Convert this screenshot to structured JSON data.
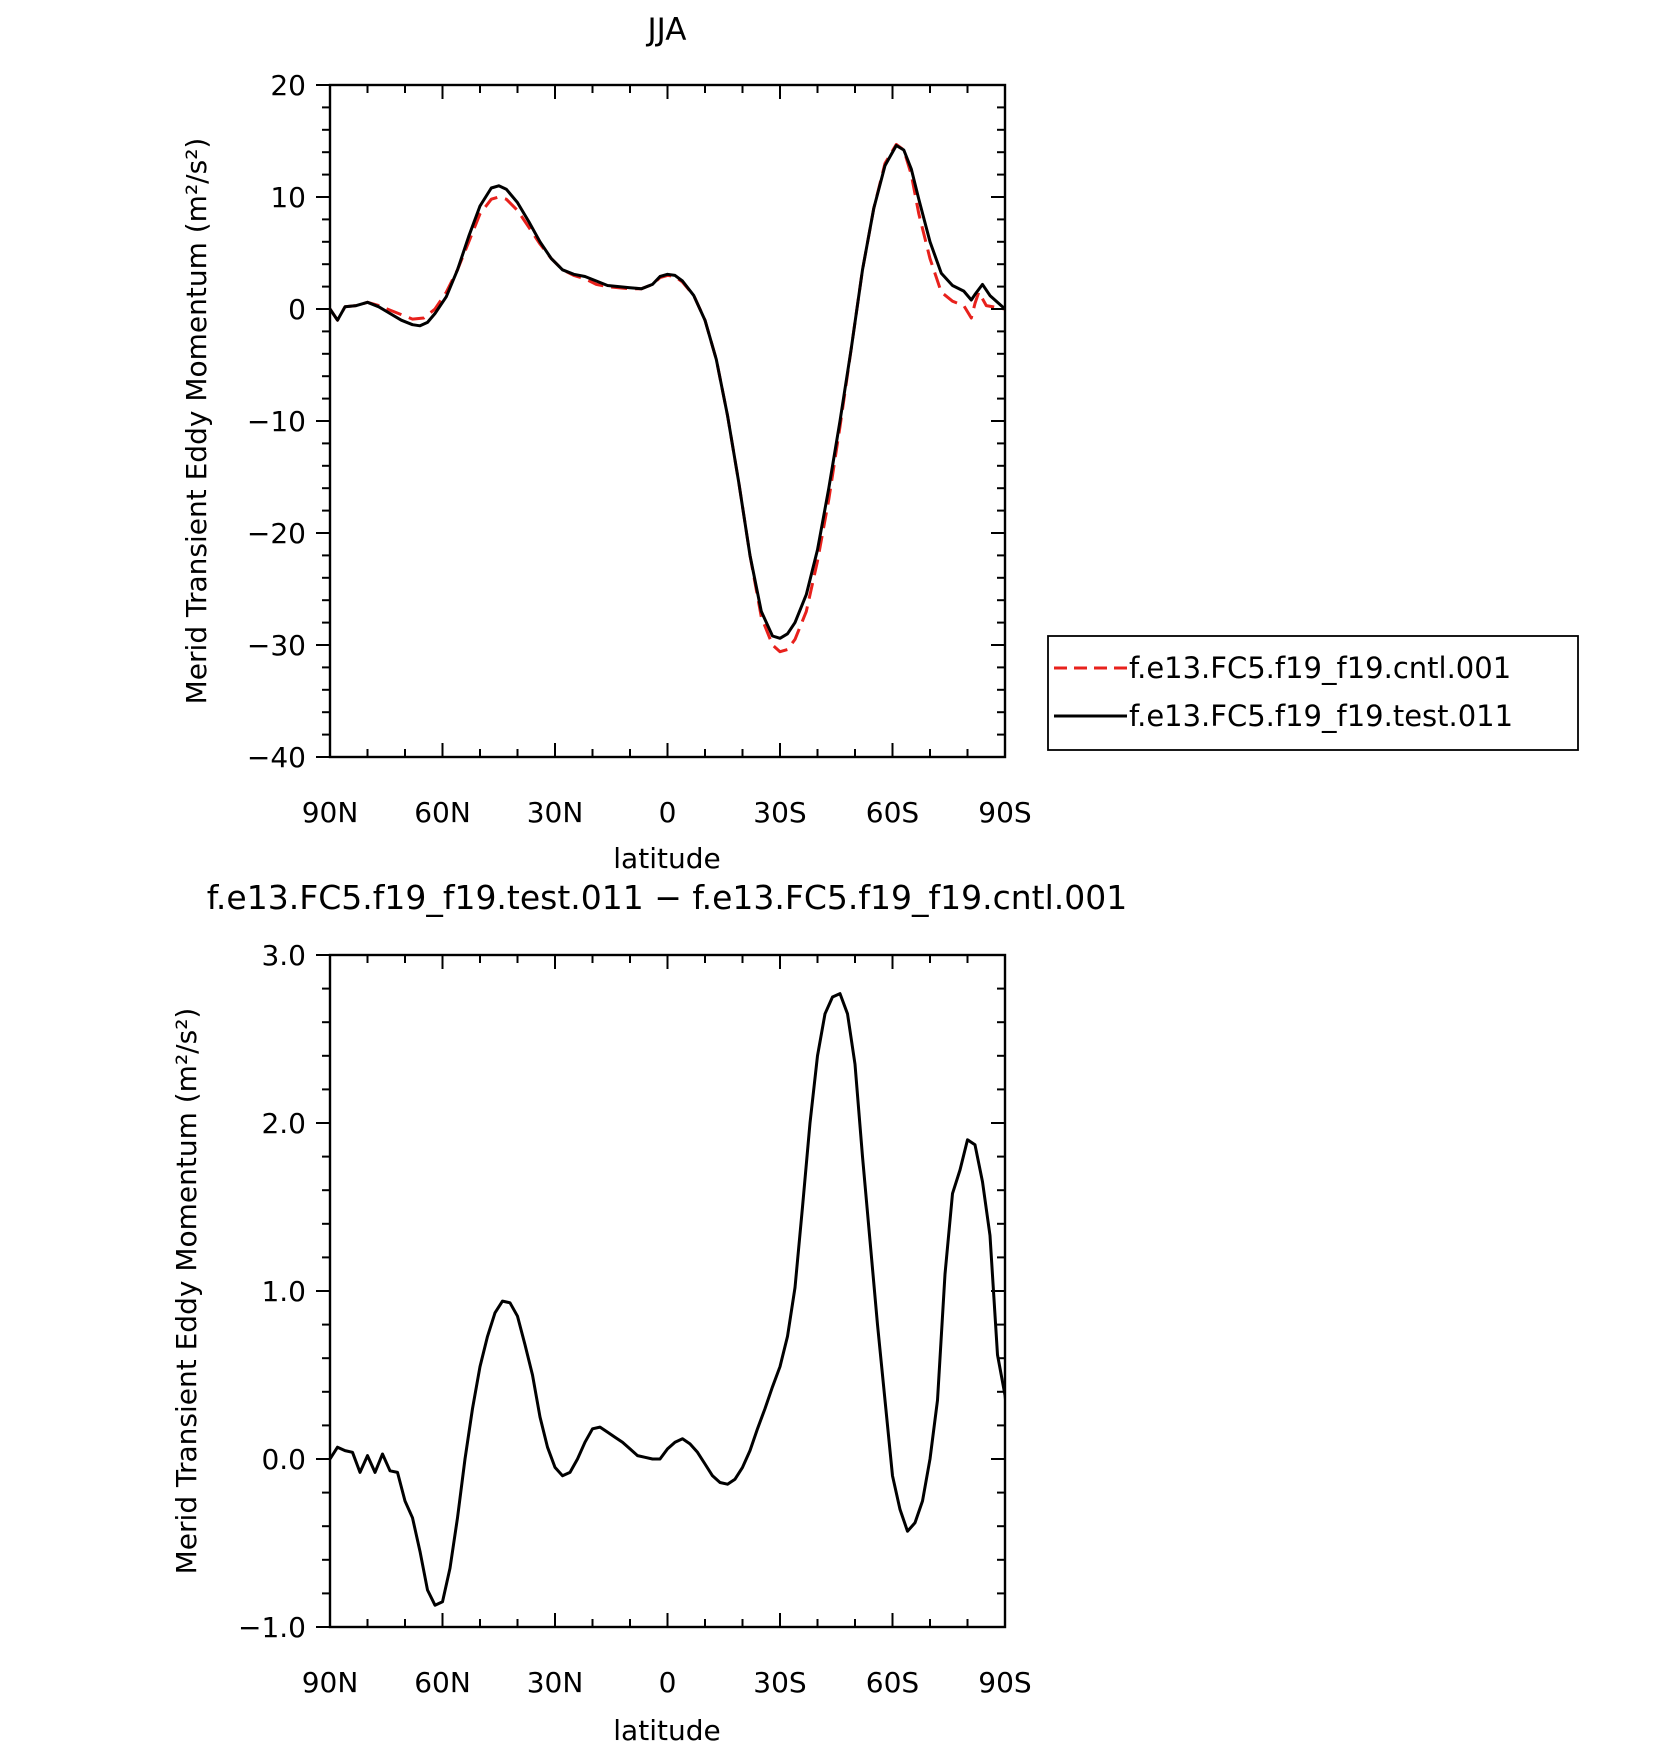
{
  "chart_data": [
    {
      "type": "line",
      "title": "JJA",
      "xlabel": "latitude",
      "ylabel": "Merid Transient Eddy Momentum (m²/s²)",
      "xlim": [
        -90,
        90
      ],
      "ylim": [
        -40,
        20
      ],
      "x_ticks": [
        {
          "value": -90,
          "label": "90N"
        },
        {
          "value": -60,
          "label": "60N"
        },
        {
          "value": -30,
          "label": "30N"
        },
        {
          "value": 0,
          "label": "0"
        },
        {
          "value": 30,
          "label": "30S"
        },
        {
          "value": 60,
          "label": "60S"
        },
        {
          "value": 90,
          "label": "90S"
        }
      ],
      "y_ticks": [
        {
          "value": 20,
          "label": "20"
        },
        {
          "value": 10,
          "label": "10"
        },
        {
          "value": 0,
          "label": "0"
        },
        {
          "value": -10,
          "label": "−10"
        },
        {
          "value": -20,
          "label": "−20"
        },
        {
          "value": -30,
          "label": "−30"
        },
        {
          "value": -40,
          "label": "−40"
        }
      ],
      "legend_position": "right",
      "series": [
        {
          "name": "f.e13.FC5.f19_f19.cntl.001",
          "color": "#e8211c",
          "dash": "dashed",
          "points": [
            [
              -90,
              0
            ],
            [
              -88,
              -1
            ],
            [
              -86,
              0.2
            ],
            [
              -83,
              0.3
            ],
            [
              -80,
              0.6
            ],
            [
              -77,
              0.3
            ],
            [
              -74,
              -0.1
            ],
            [
              -71,
              -0.5
            ],
            [
              -68,
              -0.9
            ],
            [
              -65,
              -0.8
            ],
            [
              -62,
              0
            ],
            [
              -59,
              1.5
            ],
            [
              -56,
              3.5
            ],
            [
              -53,
              6
            ],
            [
              -50,
              8.5
            ],
            [
              -47,
              9.8
            ],
            [
              -45,
              10
            ],
            [
              -43,
              9.8
            ],
            [
              -40,
              8.8
            ],
            [
              -37,
              7.3
            ],
            [
              -34,
              5.8
            ],
            [
              -31,
              4.5
            ],
            [
              -28,
              3.5
            ],
            [
              -25,
              3
            ],
            [
              -22,
              2.7
            ],
            [
              -19,
              2.2
            ],
            [
              -16,
              2
            ],
            [
              -13,
              1.9
            ],
            [
              -10,
              1.8
            ],
            [
              -7,
              1.8
            ],
            [
              -4,
              2.2
            ],
            [
              -2,
              2.8
            ],
            [
              0,
              3
            ],
            [
              2,
              2.9
            ],
            [
              4,
              2.4
            ],
            [
              7,
              1.2
            ],
            [
              10,
              -1
            ],
            [
              13,
              -4.5
            ],
            [
              16,
              -9.5
            ],
            [
              19,
              -15.5
            ],
            [
              22,
              -22
            ],
            [
              25,
              -27.5
            ],
            [
              28,
              -30
            ],
            [
              30,
              -30.6
            ],
            [
              32,
              -30.4
            ],
            [
              34,
              -29.5
            ],
            [
              37,
              -27
            ],
            [
              40,
              -22.5
            ],
            [
              43,
              -17
            ],
            [
              46,
              -10.5
            ],
            [
              49,
              -3.5
            ],
            [
              52,
              3.5
            ],
            [
              55,
              9
            ],
            [
              58,
              13
            ],
            [
              61,
              14.7
            ],
            [
              63,
              14.2
            ],
            [
              65,
              12
            ],
            [
              67,
              8.5
            ],
            [
              70,
              4.5
            ],
            [
              73,
              1.5
            ],
            [
              76,
              0.7
            ],
            [
              79,
              0.3
            ],
            [
              81,
              -0.8
            ],
            [
              82,
              0.5
            ],
            [
              83,
              1.5
            ],
            [
              85,
              0.3
            ],
            [
              90,
              0
            ]
          ]
        },
        {
          "name": "f.e13.FC5.f19_f19.test.011",
          "color": "#000000",
          "dash": "solid",
          "points": [
            [
              -90,
              0
            ],
            [
              -88,
              -1
            ],
            [
              -86,
              0.2
            ],
            [
              -83,
              0.3
            ],
            [
              -80,
              0.6
            ],
            [
              -77,
              0.2
            ],
            [
              -74,
              -0.4
            ],
            [
              -71,
              -1
            ],
            [
              -68,
              -1.4
            ],
            [
              -66,
              -1.5
            ],
            [
              -64,
              -1.2
            ],
            [
              -62,
              -0.4
            ],
            [
              -59,
              1.1
            ],
            [
              -56,
              3.5
            ],
            [
              -53,
              6.5
            ],
            [
              -50,
              9.2
            ],
            [
              -47,
              10.8
            ],
            [
              -45,
              11
            ],
            [
              -43,
              10.7
            ],
            [
              -40,
              9.5
            ],
            [
              -37,
              7.8
            ],
            [
              -34,
              6
            ],
            [
              -31,
              4.5
            ],
            [
              -28,
              3.5
            ],
            [
              -25,
              3.1
            ],
            [
              -22,
              2.9
            ],
            [
              -19,
              2.5
            ],
            [
              -16,
              2.1
            ],
            [
              -13,
              2
            ],
            [
              -10,
              1.9
            ],
            [
              -7,
              1.8
            ],
            [
              -4,
              2.2
            ],
            [
              -2,
              2.9
            ],
            [
              0,
              3.1
            ],
            [
              2,
              3
            ],
            [
              4,
              2.5
            ],
            [
              7,
              1.2
            ],
            [
              10,
              -1
            ],
            [
              13,
              -4.5
            ],
            [
              16,
              -9.5
            ],
            [
              19,
              -15.5
            ],
            [
              22,
              -22
            ],
            [
              25,
              -27
            ],
            [
              28,
              -29.2
            ],
            [
              30,
              -29.4
            ],
            [
              32,
              -29
            ],
            [
              34,
              -28
            ],
            [
              37,
              -25.5
            ],
            [
              40,
              -21.5
            ],
            [
              43,
              -16
            ],
            [
              46,
              -10
            ],
            [
              49,
              -3.5
            ],
            [
              52,
              3.5
            ],
            [
              55,
              9
            ],
            [
              58,
              12.8
            ],
            [
              61,
              14.6
            ],
            [
              63,
              14.2
            ],
            [
              65,
              12.5
            ],
            [
              67,
              9.8
            ],
            [
              70,
              6
            ],
            [
              73,
              3.2
            ],
            [
              76,
              2.1
            ],
            [
              79,
              1.6
            ],
            [
              81,
              0.8
            ],
            [
              82,
              1.3
            ],
            [
              84,
              2.2
            ],
            [
              86,
              1.2
            ],
            [
              90,
              0
            ]
          ]
        }
      ]
    },
    {
      "type": "line",
      "title": "f.e13.FC5.f19_f19.test.011 − f.e13.FC5.f19_f19.cntl.001",
      "xlabel": "latitude",
      "ylabel": "Merid Transient Eddy Momentum (m²/s²)",
      "xlim": [
        -90,
        90
      ],
      "ylim": [
        -1.0,
        3.0
      ],
      "x_ticks": [
        {
          "value": -90,
          "label": "90N"
        },
        {
          "value": -60,
          "label": "60N"
        },
        {
          "value": -30,
          "label": "30N"
        },
        {
          "value": 0,
          "label": "0"
        },
        {
          "value": 30,
          "label": "30S"
        },
        {
          "value": 60,
          "label": "60S"
        },
        {
          "value": 90,
          "label": "90S"
        }
      ],
      "y_ticks": [
        {
          "value": 3.0,
          "label": "3.0"
        },
        {
          "value": 2.0,
          "label": "2.0"
        },
        {
          "value": 1.0,
          "label": "1.0"
        },
        {
          "value": 0.0,
          "label": "0.0"
        },
        {
          "value": -1.0,
          "label": "−1.0"
        }
      ],
      "series": [
        {
          "color": "#000000",
          "dash": "solid",
          "points": [
            [
              -90,
              0
            ],
            [
              -88,
              0.07
            ],
            [
              -86,
              0.05
            ],
            [
              -84,
              0.04
            ],
            [
              -82,
              -0.08
            ],
            [
              -80,
              0.02
            ],
            [
              -78,
              -0.08
            ],
            [
              -76,
              0.03
            ],
            [
              -74,
              -0.07
            ],
            [
              -72,
              -0.08
            ],
            [
              -70,
              -0.25
            ],
            [
              -68,
              -0.35
            ],
            [
              -66,
              -0.55
            ],
            [
              -64,
              -0.78
            ],
            [
              -62,
              -0.87
            ],
            [
              -60,
              -0.85
            ],
            [
              -58,
              -0.65
            ],
            [
              -56,
              -0.35
            ],
            [
              -54,
              0
            ],
            [
              -52,
              0.3
            ],
            [
              -50,
              0.55
            ],
            [
              -48,
              0.73
            ],
            [
              -46,
              0.87
            ],
            [
              -44,
              0.94
            ],
            [
              -42,
              0.93
            ],
            [
              -40,
              0.85
            ],
            [
              -38,
              0.68
            ],
            [
              -36,
              0.5
            ],
            [
              -34,
              0.25
            ],
            [
              -32,
              0.07
            ],
            [
              -30,
              -0.05
            ],
            [
              -28,
              -0.1
            ],
            [
              -26,
              -0.08
            ],
            [
              -24,
              0
            ],
            [
              -22,
              0.1
            ],
            [
              -20,
              0.18
            ],
            [
              -18,
              0.19
            ],
            [
              -16,
              0.16
            ],
            [
              -14,
              0.13
            ],
            [
              -12,
              0.1
            ],
            [
              -10,
              0.06
            ],
            [
              -8,
              0.02
            ],
            [
              -6,
              0.01
            ],
            [
              -4,
              0
            ],
            [
              -2,
              0
            ],
            [
              0,
              0.06
            ],
            [
              2,
              0.1
            ],
            [
              4,
              0.12
            ],
            [
              6,
              0.09
            ],
            [
              8,
              0.04
            ],
            [
              10,
              -0.03
            ],
            [
              12,
              -0.1
            ],
            [
              14,
              -0.14
            ],
            [
              16,
              -0.15
            ],
            [
              18,
              -0.12
            ],
            [
              20,
              -0.05
            ],
            [
              22,
              0.05
            ],
            [
              24,
              0.18
            ],
            [
              26,
              0.3
            ],
            [
              28,
              0.43
            ],
            [
              30,
              0.55
            ],
            [
              32,
              0.73
            ],
            [
              34,
              1.02
            ],
            [
              36,
              1.5
            ],
            [
              38,
              2.0
            ],
            [
              40,
              2.4
            ],
            [
              42,
              2.65
            ],
            [
              44,
              2.75
            ],
            [
              46,
              2.77
            ],
            [
              48,
              2.65
            ],
            [
              50,
              2.35
            ],
            [
              52,
              1.8
            ],
            [
              54,
              1.3
            ],
            [
              56,
              0.8
            ],
            [
              58,
              0.35
            ],
            [
              60,
              -0.1
            ],
            [
              62,
              -0.3
            ],
            [
              64,
              -0.43
            ],
            [
              66,
              -0.38
            ],
            [
              68,
              -0.25
            ],
            [
              70,
              0
            ],
            [
              72,
              0.35
            ],
            [
              74,
              1.1
            ],
            [
              76,
              1.58
            ],
            [
              78,
              1.72
            ],
            [
              80,
              1.9
            ],
            [
              82,
              1.87
            ],
            [
              84,
              1.65
            ],
            [
              86,
              1.33
            ],
            [
              88,
              0.62
            ],
            [
              90,
              0.38
            ],
            [
              92,
              0
            ]
          ]
        }
      ]
    }
  ]
}
